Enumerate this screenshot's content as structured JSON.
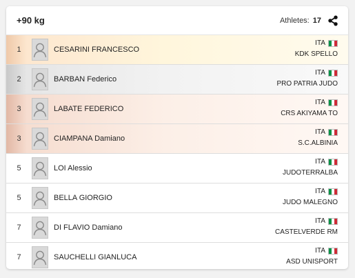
{
  "header": {
    "title": "+90 kg",
    "athletes_label": "Athletes:",
    "athletes_count": "17"
  },
  "colors": {
    "flag_green": "#009246",
    "flag_white": "#ffffff",
    "flag_red": "#ce2b37"
  },
  "icons": {
    "share": "share-icon",
    "avatar": "person-placeholder-icon",
    "flag": "italy-flag-icon"
  },
  "athletes": [
    {
      "rank": "1",
      "name": "CESARINI FRANCESCO",
      "country": "ITA",
      "club": "KDK SPELLO"
    },
    {
      "rank": "2",
      "name": "BARBAN Federico",
      "country": "ITA",
      "club": "PRO PATRIA JUDO"
    },
    {
      "rank": "3",
      "name": "LABATE FEDERICO",
      "country": "ITA",
      "club": "CRS AKIYAMA TO"
    },
    {
      "rank": "3",
      "name": "CIAMPANA Damiano",
      "country": "ITA",
      "club": "S.C.ALBINIA"
    },
    {
      "rank": "5",
      "name": "LOI Alessio",
      "country": "ITA",
      "club": "JUDOTERRALBA"
    },
    {
      "rank": "5",
      "name": "BELLA GIORGIO",
      "country": "ITA",
      "club": "JUDO MALEGNO"
    },
    {
      "rank": "7",
      "name": "DI FLAVIO Damiano",
      "country": "ITA",
      "club": "CASTELVERDE RM"
    },
    {
      "rank": "7",
      "name": "SAUCHELLI GIANLUCA",
      "country": "ITA",
      "club": "ASD UNISPORT"
    }
  ]
}
